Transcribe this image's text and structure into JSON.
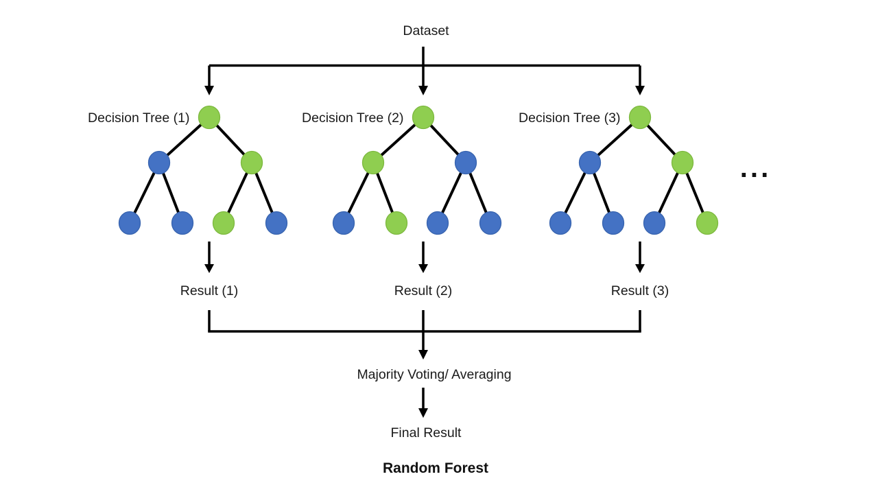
{
  "diagram_title": "Random Forest",
  "dataset_label": "Dataset",
  "more_trees_ellipsis": "...",
  "majority_label": "Majority Voting/ Averaging",
  "final_result_label": "Final Result",
  "colors": {
    "green": "#8FCE50",
    "green_border": "#7CB83E",
    "blue": "#4472C4",
    "blue_border": "#3763AE",
    "line": "#000000",
    "text": "#1a1a1a",
    "background": "#ffffff"
  },
  "trees": [
    {
      "label": "Decision Tree (1)",
      "result_label": "Result (1)",
      "nodes": {
        "root": "green",
        "internal": [
          "blue",
          "green"
        ],
        "leaves": [
          "blue",
          "blue",
          "green",
          "blue"
        ]
      }
    },
    {
      "label": "Decision Tree (2)",
      "result_label": "Result (2)",
      "nodes": {
        "root": "green",
        "internal": [
          "green",
          "blue"
        ],
        "leaves": [
          "blue",
          "green",
          "blue",
          "blue"
        ]
      }
    },
    {
      "label": "Decision Tree (3)",
      "result_label": "Result (3)",
      "nodes": {
        "root": "green",
        "internal": [
          "blue",
          "green"
        ],
        "leaves": [
          "blue",
          "blue",
          "blue",
          "green"
        ]
      }
    }
  ]
}
